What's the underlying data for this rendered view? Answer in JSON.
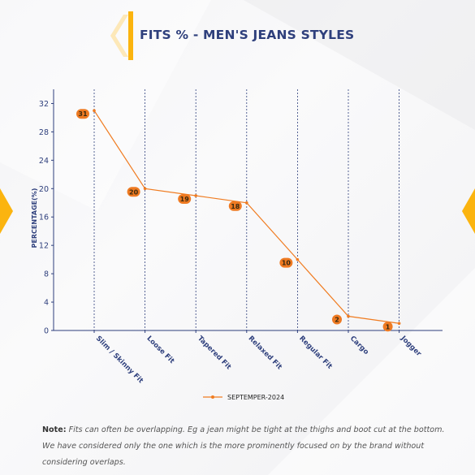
{
  "title": "FITS % - MEN'S JEANS STYLES",
  "note": {
    "label": "Note:",
    "text": " Fits can often be overlapping. Eg a jean might be tight at the thighs and boot cut at the bottom. We have considered only the one which is the more prominently focused on by the brand without considering overlaps."
  },
  "colors": {
    "accent": "#fbb40f",
    "line": "#f07c21",
    "label_bg": "#ee7a22",
    "text": "#2e3f7c"
  },
  "chart_data": {
    "type": "line",
    "categories": [
      "Slim / Skinny Fit",
      "Loose Fit",
      "Tapered Fit",
      "Relaxed Fit",
      "Regular Fit",
      "Cargo",
      "Jogger"
    ],
    "series": [
      {
        "name": "SEPTEMPER-2024",
        "values": [
          31,
          20,
          19,
          18,
          10,
          2,
          1
        ]
      }
    ],
    "ylabel": "PERCENTAGE(%)",
    "xlabel": "",
    "ylim": [
      0,
      34
    ],
    "yticks": [
      0,
      4,
      8,
      12,
      16,
      20,
      24,
      28,
      32
    ],
    "grid": "vertical-dashed",
    "legend": "bottom-center"
  }
}
